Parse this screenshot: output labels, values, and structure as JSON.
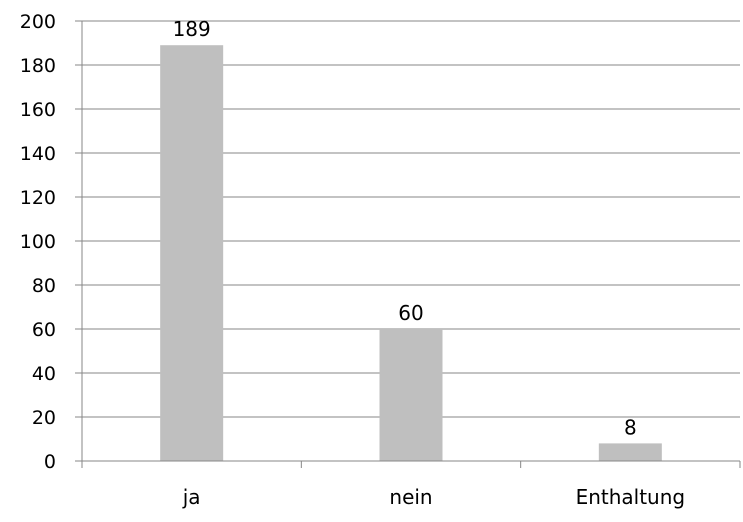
{
  "chart_data": {
    "type": "bar",
    "categories": [
      "ja",
      "nein",
      "Enthaltung"
    ],
    "values": [
      189,
      60,
      8
    ],
    "data_labels": [
      "189",
      "60",
      "8"
    ],
    "ylim": [
      0,
      200
    ],
    "yticks": [
      0,
      20,
      40,
      60,
      80,
      100,
      120,
      140,
      160,
      180,
      200
    ],
    "ytick_labels": [
      "0",
      "20",
      "40",
      "60",
      "80",
      "100",
      "120",
      "140",
      "160",
      "180",
      "200"
    ],
    "grid": true,
    "legend": "none",
    "bar_color": "#bfbfbf",
    "grid_color": "#878787",
    "axis_color": "#878787"
  }
}
